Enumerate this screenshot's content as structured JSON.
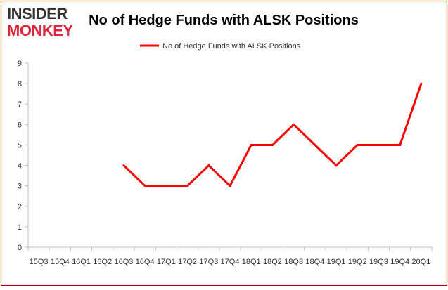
{
  "logo": {
    "line1": "INSIDER",
    "line2": "MONKEY"
  },
  "chart_data": {
    "type": "line",
    "title": "No of Hedge Funds with ALSK Positions",
    "xlabel": "",
    "ylabel": "",
    "categories": [
      "15Q3",
      "15Q4",
      "16Q1",
      "16Q2",
      "16Q3",
      "16Q4",
      "17Q1",
      "17Q2",
      "17Q3",
      "17Q4",
      "18Q1",
      "18Q2",
      "18Q3",
      "18Q4",
      "19Q1",
      "19Q2",
      "19Q3",
      "19Q4",
      "20Q1"
    ],
    "series": [
      {
        "name": "No of Hedge Funds with ALSK Positions",
        "color": "#ff0000",
        "values": [
          null,
          null,
          null,
          null,
          4,
          3,
          3,
          3,
          4,
          3,
          5,
          5,
          6,
          5,
          4,
          5,
          5,
          5,
          8
        ]
      }
    ],
    "ylim": [
      0,
      9
    ],
    "yticks": [
      0,
      1,
      2,
      3,
      4,
      5,
      6,
      7,
      8,
      9
    ],
    "grid": false,
    "legend_position": "top"
  },
  "colors": {
    "title": "#000000",
    "frame_border": "#c00000",
    "axis": "#bfbfbf",
    "logo_dark": "#333333",
    "logo_accent": "#e0263c",
    "line": "#ff0000"
  }
}
